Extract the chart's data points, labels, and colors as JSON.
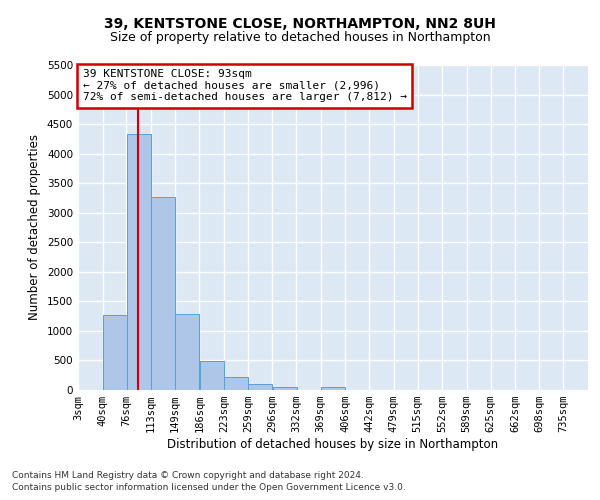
{
  "title_line1": "39, KENTSTONE CLOSE, NORTHAMPTON, NN2 8UH",
  "title_line2": "Size of property relative to detached houses in Northampton",
  "xlabel": "Distribution of detached houses by size in Northampton",
  "ylabel": "Number of detached properties",
  "footnote1": "Contains HM Land Registry data © Crown copyright and database right 2024.",
  "footnote2": "Contains public sector information licensed under the Open Government Licence v3.0.",
  "annotation_line1": "39 KENTSTONE CLOSE: 93sqm",
  "annotation_line2": "← 27% of detached houses are smaller (2,996)",
  "annotation_line3": "72% of semi-detached houses are larger (7,812) →",
  "property_size": 93,
  "bar_categories": [
    "3sqm",
    "40sqm",
    "76sqm",
    "113sqm",
    "149sqm",
    "186sqm",
    "223sqm",
    "259sqm",
    "296sqm",
    "332sqm",
    "369sqm",
    "406sqm",
    "442sqm",
    "479sqm",
    "515sqm",
    "552sqm",
    "589sqm",
    "625sqm",
    "662sqm",
    "698sqm",
    "735sqm"
  ],
  "bar_values": [
    0,
    1270,
    4340,
    3260,
    1280,
    490,
    220,
    95,
    50,
    0,
    55,
    0,
    0,
    0,
    0,
    0,
    0,
    0,
    0,
    0,
    0
  ],
  "bar_left_edges": [
    3,
    40,
    76,
    113,
    149,
    186,
    223,
    259,
    296,
    332,
    369,
    406,
    442,
    479,
    515,
    552,
    589,
    625,
    662,
    698,
    735
  ],
  "bin_width": 37,
  "bar_color": "#aec6e8",
  "bar_edge_color": "#5a9fd4",
  "red_line_x": 93,
  "ylim": [
    0,
    5500
  ],
  "yticks": [
    0,
    500,
    1000,
    1500,
    2000,
    2500,
    3000,
    3500,
    4000,
    4500,
    5000,
    5500
  ],
  "background_color": "#dde8f5",
  "grid_color": "#ffffff",
  "annotation_box_color": "#ffffff",
  "annotation_box_edge": "#cc0000",
  "red_line_color": "#cc0000",
  "title_fontsize": 10,
  "subtitle_fontsize": 9,
  "axis_label_fontsize": 8.5,
  "tick_fontsize": 7.5,
  "annotation_fontsize": 8,
  "footnote_fontsize": 6.5
}
